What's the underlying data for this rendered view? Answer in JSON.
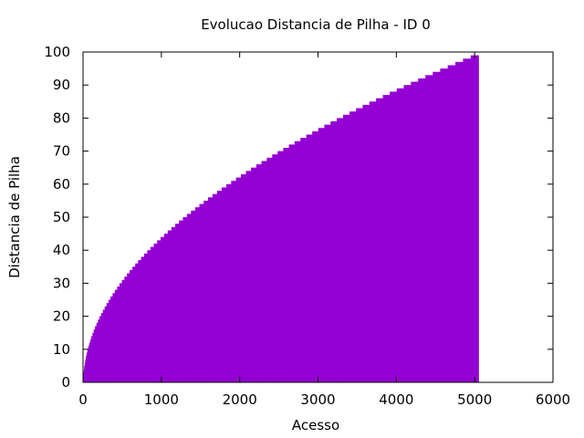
{
  "chart_data": {
    "type": "area",
    "title": "Evolucao Distancia de Pilha - ID 0",
    "xlabel": "Acesso",
    "ylabel": "Distancia de Pilha",
    "xlim": [
      0,
      6000
    ],
    "ylim": [
      0,
      100
    ],
    "xticks": [
      0,
      1000,
      2000,
      3000,
      4000,
      5000,
      6000
    ],
    "yticks": [
      0,
      10,
      20,
      30,
      40,
      50,
      60,
      70,
      80,
      90,
      100
    ],
    "xtick_labels": [
      "0",
      "1000",
      "2000",
      "3000",
      "4000",
      "5000",
      "6000"
    ],
    "ytick_labels": [
      "0",
      "10",
      "20",
      "30",
      "40",
      "50",
      "60",
      "70",
      "80",
      "90",
      "100"
    ],
    "grid": false,
    "legend": "none",
    "color": "#9400d3",
    "series": [
      {
        "x": [
          0,
          1,
          3,
          6,
          10,
          15,
          21,
          28,
          36,
          45,
          55,
          66,
          78,
          91,
          105,
          120,
          136,
          153,
          171,
          190,
          210,
          231,
          253,
          276,
          300,
          325,
          351,
          378,
          406,
          435,
          465,
          496,
          528,
          561,
          595,
          630,
          666,
          703,
          741,
          780,
          820,
          861,
          903,
          946,
          990,
          1035,
          1081,
          1128,
          1176,
          1225,
          1275,
          1326,
          1378,
          1431,
          1485,
          1540,
          1596,
          1653,
          1711,
          1770,
          1830,
          1891,
          1953,
          2016,
          2080,
          2145,
          2211,
          2278,
          2346,
          2415,
          2485,
          2556,
          2628,
          2701,
          2775,
          2850,
          2926,
          3003,
          3081,
          3160,
          3240,
          3321,
          3403,
          3486,
          3570,
          3655,
          3741,
          3828,
          3916,
          4005,
          4095,
          4186,
          4278,
          4371,
          4465,
          4560,
          4656,
          4753,
          4851,
          4950,
          5050
        ],
        "y": [
          0,
          1,
          2,
          3,
          4,
          5,
          6,
          7,
          8,
          9,
          10,
          11,
          12,
          13,
          14,
          15,
          16,
          17,
          18,
          19,
          20,
          21,
          22,
          23,
          24,
          25,
          26,
          27,
          28,
          29,
          30,
          31,
          32,
          33,
          34,
          35,
          36,
          37,
          38,
          39,
          40,
          41,
          42,
          43,
          44,
          45,
          46,
          47,
          48,
          49,
          50,
          51,
          52,
          53,
          54,
          55,
          56,
          57,
          58,
          59,
          60,
          61,
          62,
          63,
          64,
          65,
          66,
          67,
          68,
          69,
          70,
          71,
          72,
          73,
          74,
          75,
          76,
          77,
          78,
          79,
          80,
          81,
          82,
          83,
          84,
          85,
          86,
          87,
          88,
          89,
          90,
          91,
          92,
          93,
          94,
          95,
          96,
          97,
          98,
          99,
          99
        ]
      }
    ]
  }
}
